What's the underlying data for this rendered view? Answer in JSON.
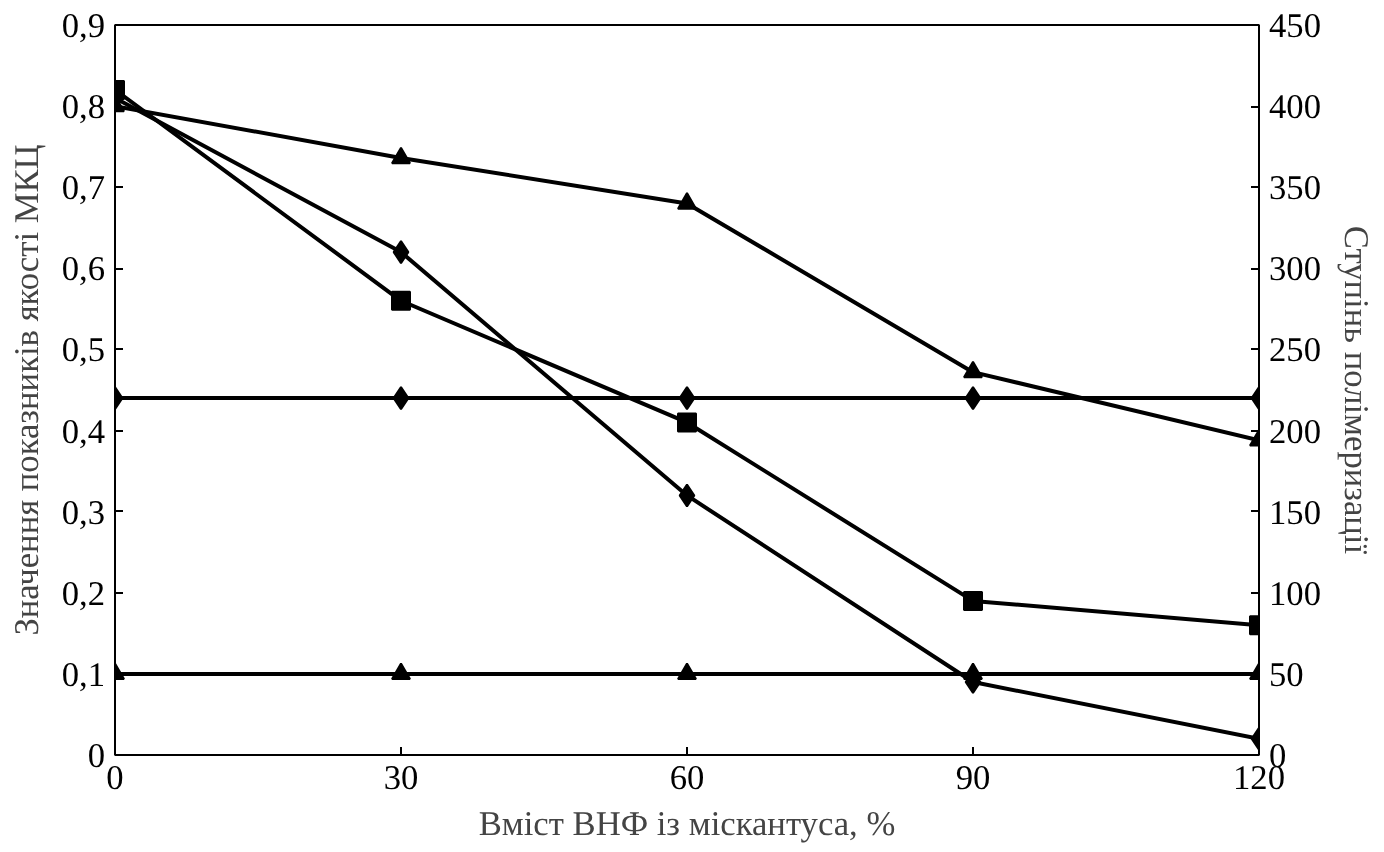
{
  "chart_data": {
    "type": "line",
    "xlabel": "Вміст ВНФ із міскантуса, %",
    "ylabel": "Значення показників якості МКЦ",
    "y2label": "Ступінь полімеризації",
    "x": [
      0,
      30,
      60,
      90,
      120
    ],
    "xlim": [
      0,
      120
    ],
    "xticks": [
      0,
      30,
      60,
      90,
      120
    ],
    "ylim": [
      0,
      0.9
    ],
    "yticks": [
      {
        "value": 0,
        "label": "0"
      },
      {
        "value": 0.1,
        "label": "0,1"
      },
      {
        "value": 0.2,
        "label": "0,2"
      },
      {
        "value": 0.3,
        "label": "0,3"
      },
      {
        "value": 0.4,
        "label": "0,4"
      },
      {
        "value": 0.5,
        "label": "0,5"
      },
      {
        "value": 0.6,
        "label": "0,6"
      },
      {
        "value": 0.7,
        "label": "0,7"
      },
      {
        "value": 0.8,
        "label": "0,8"
      },
      {
        "value": 0.9,
        "label": "0,9"
      }
    ],
    "y2lim": [
      0,
      450
    ],
    "y2ticks": [
      0,
      50,
      100,
      150,
      200,
      250,
      300,
      350,
      400,
      450
    ],
    "grid": false,
    "line_style": "solid",
    "series": [
      {
        "color": "#000000",
        "marker": "diamond",
        "values": [
          0.81,
          0.62,
          0.32,
          0.09,
          0.02
        ]
      },
      {
        "color": "#000000",
        "marker": "square",
        "values": [
          0.82,
          0.56,
          0.41,
          0.19,
          0.16
        ]
      },
      {
        "color": "#000000",
        "marker": "triangle",
        "axis": "y2",
        "values": [
          400,
          368,
          340,
          236,
          194
        ]
      },
      {
        "color": "#000000",
        "marker": "diamond",
        "values": [
          0.44,
          0.44,
          0.44,
          0.44,
          0.44
        ]
      },
      {
        "color": "#000000",
        "marker": "triangle",
        "values": [
          0.1,
          0.1,
          0.1,
          0.1,
          0.1
        ]
      }
    ]
  }
}
